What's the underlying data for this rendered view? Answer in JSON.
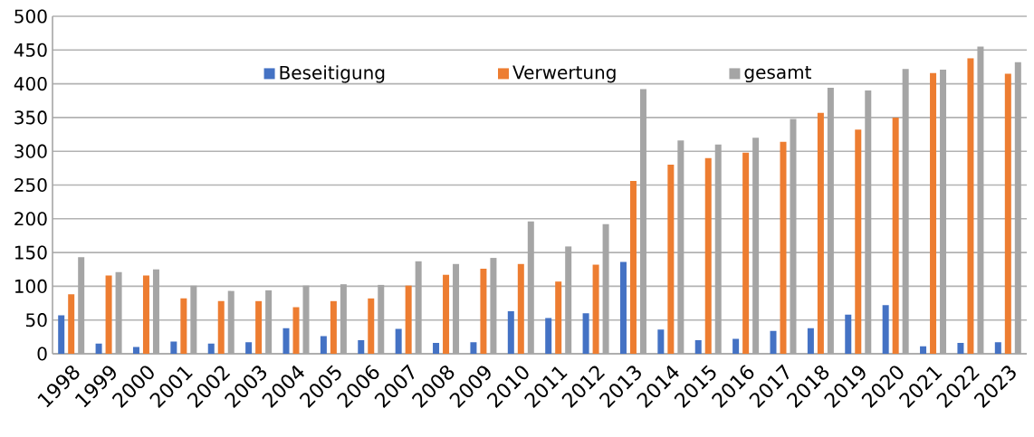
{
  "chart_data": {
    "type": "bar",
    "categories": [
      "1998",
      "1999",
      "2000",
      "2001",
      "2002",
      "2003",
      "2004",
      "2005",
      "2006",
      "2007",
      "2008",
      "2009",
      "2010",
      "2011",
      "2012",
      "2013",
      "2014",
      "2015",
      "2016",
      "2017",
      "2018",
      "2019",
      "2020",
      "2021",
      "2022",
      "2023"
    ],
    "series": [
      {
        "name": "Beseitigung",
        "color": "#4472c4",
        "values": [
          57,
          15,
          10,
          18,
          15,
          17,
          38,
          26,
          20,
          37,
          16,
          17,
          63,
          53,
          60,
          136,
          36,
          20,
          22,
          34,
          38,
          58,
          72,
          11,
          16,
          17
        ]
      },
      {
        "name": "Verwertung",
        "color": "#ed7d31",
        "values": [
          88,
          116,
          116,
          82,
          78,
          78,
          69,
          78,
          82,
          101,
          117,
          126,
          133,
          107,
          132,
          256,
          280,
          290,
          298,
          314,
          357,
          332,
          350,
          416,
          438,
          415
        ]
      },
      {
        "name": "gesamt",
        "color": "#a5a5a5",
        "values": [
          143,
          121,
          125,
          101,
          93,
          94,
          101,
          103,
          102,
          137,
          133,
          142,
          196,
          159,
          192,
          392,
          316,
          310,
          320,
          348,
          394,
          390,
          422,
          421,
          455,
          432
        ]
      }
    ],
    "ylim": [
      0,
      500
    ],
    "yticks": [
      0,
      50,
      100,
      150,
      200,
      250,
      300,
      350,
      400,
      450,
      500
    ],
    "grid": "y",
    "legend": "top"
  }
}
